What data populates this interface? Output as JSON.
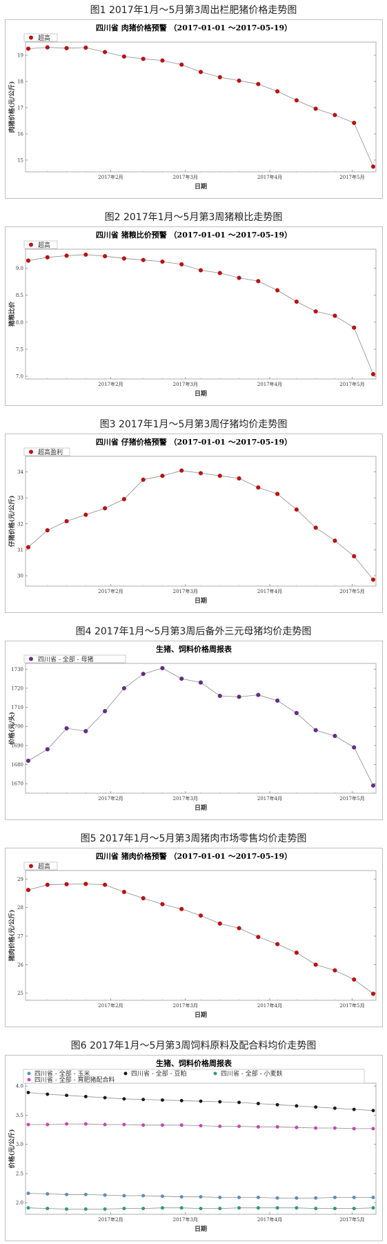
{
  "charts": [
    {
      "caption": "图1 2017年1月～5月第3周出栏肥猪价格走势图",
      "chart_data": {
        "type": "line",
        "title": "四川省 肉猪价格预警 （2017-01-01 ～2017-05-19）",
        "xlabel": "日期",
        "ylabel": "肉猪价格(元/公斤)",
        "x_ticks": [
          "2017年2月",
          "2017年3月",
          "2017年4月",
          "2017年5月"
        ],
        "y_ticks": [
          "15",
          "16",
          "17",
          "18",
          "19"
        ],
        "ylim": [
          14.55,
          19.5
        ],
        "series": [
          {
            "name": "超高",
            "color": "#c01010",
            "values": [
              19.25,
              19.3,
              19.27,
              19.29,
              19.12,
              18.95,
              18.86,
              18.8,
              18.64,
              18.36,
              18.16,
              18.03,
              17.9,
              17.62,
              17.28,
              16.96,
              16.72,
              16.42,
              14.75
            ]
          }
        ]
      }
    },
    {
      "caption": "图2 2017年1月～5月第3周猪粮比走势图",
      "chart_data": {
        "type": "line",
        "title": "四川省 猪粮比价预警 （2017-01-01 ～2017-05-19）",
        "xlabel": "日期",
        "ylabel": "猪粮比价",
        "x_ticks": [
          "2017年2月",
          "2017年3月",
          "2017年4月",
          "2017年5月"
        ],
        "y_ticks": [
          "7.0",
          "7.5",
          "8.0",
          "8.5",
          "9.0"
        ],
        "ylim": [
          6.95,
          9.35
        ],
        "series": [
          {
            "name": "超高",
            "color": "#c01010",
            "values": [
              9.14,
              9.2,
              9.23,
              9.25,
              9.22,
              9.18,
              9.15,
              9.12,
              9.07,
              8.96,
              8.91,
              8.82,
              8.76,
              8.59,
              8.38,
              8.2,
              8.12,
              7.9,
              7.04
            ]
          }
        ]
      }
    },
    {
      "caption": "图3 2017年1月～5月第3周仔猪均价走势图",
      "chart_data": {
        "type": "line",
        "title": "四川省 仔猪价格预警 （2017-01-01 ～2017-05-19）",
        "xlabel": "日期",
        "ylabel": "仔猪价格(元/公斤)",
        "x_ticks": [
          "2017年2月",
          "2017年3月",
          "2017年4月",
          "2017年5月"
        ],
        "y_ticks": [
          "30",
          "31",
          "32",
          "33",
          "34"
        ],
        "ylim": [
          29.6,
          34.6
        ],
        "series": [
          {
            "name": "超高盈利",
            "color": "#c01010",
            "values": [
              31.1,
              31.75,
              32.1,
              32.35,
              32.6,
              32.95,
              33.7,
              33.85,
              34.05,
              33.95,
              33.85,
              33.75,
              33.4,
              33.15,
              32.55,
              31.85,
              31.35,
              30.75,
              29.85
            ]
          }
        ]
      }
    },
    {
      "caption": "图4 2017年1月～5月第3周后备外三元母猪均价走势图",
      "chart_data": {
        "type": "line",
        "title": "生猪、饲料价格周报表",
        "xlabel": "日期",
        "ylabel": "价格(元/头)",
        "x_ticks": [
          "2017年2月",
          "2017年3月",
          "2017年4月",
          "2017年5月"
        ],
        "y_ticks": [
          "1670",
          "1680",
          "1690",
          "1700",
          "1710",
          "1720",
          "1730"
        ],
        "ylim": [
          1665,
          1733
        ],
        "series": [
          {
            "name": "四川省 - 全部 - 母猪",
            "color": "#6a2a8a",
            "values": [
              1682,
              1688,
              1699,
              1697.5,
              1708,
              1720,
              1727.5,
              1730.5,
              1725,
              1723,
              1716,
              1715.5,
              1716.5,
              1713.5,
              1707,
              1698,
              1695,
              1689,
              1669
            ]
          }
        ]
      }
    },
    {
      "caption": "图5 2017年1月～5月第3周猪肉市场零售均价走势图",
      "chart_data": {
        "type": "line",
        "title": "四川省 猪肉价格预警 （2017-01-01 ～2017-05-19）",
        "xlabel": "日期",
        "ylabel": "猪肉价格(元/公斤)",
        "x_ticks": [
          "2017年2月",
          "2017年3月",
          "2017年4月",
          "2017年5月"
        ],
        "y_ticks": [
          "25",
          "26",
          "27",
          "28",
          "29"
        ],
        "ylim": [
          24.75,
          29.3
        ],
        "series": [
          {
            "name": "超高",
            "color": "#c01010",
            "values": [
              28.62,
              28.8,
              28.82,
              28.83,
              28.8,
              28.55,
              28.33,
              28.12,
              27.95,
              27.72,
              27.44,
              27.28,
              26.97,
              26.72,
              26.42,
              26.0,
              25.8,
              25.48,
              24.98
            ]
          }
        ]
      }
    },
    {
      "caption": "图6 2017年1月～5月第3周饲料原料及配合料均价走势图",
      "chart_data": {
        "type": "line",
        "title": "生猪、饲料价格周报表",
        "xlabel": "日期",
        "ylabel": "价格(元/公斤)",
        "x_ticks": [
          "2017年2月",
          "2017年3月",
          "2017年4月",
          "2017年5月"
        ],
        "y_ticks": [
          "2.0",
          "2.5",
          "3.0",
          "3.5",
          "4.0"
        ],
        "ylim": [
          1.8,
          4.05
        ],
        "series": [
          {
            "name": "四川省 - 全部 - 玉米",
            "color": "#5a8fc0",
            "values": [
              2.16,
              2.15,
              2.14,
              2.14,
              2.13,
              2.12,
              2.12,
              2.11,
              2.1,
              2.1,
              2.09,
              2.09,
              2.09,
              2.08,
              2.08,
              2.08,
              2.09,
              2.09,
              2.09
            ]
          },
          {
            "name": "四川省 - 全部 - 豆粕",
            "color": "#1a1a1a",
            "values": [
              3.89,
              3.86,
              3.84,
              3.82,
              3.8,
              3.78,
              3.77,
              3.76,
              3.75,
              3.74,
              3.73,
              3.72,
              3.7,
              3.68,
              3.66,
              3.64,
              3.62,
              3.6,
              3.58
            ]
          },
          {
            "name": "四川省 - 全部 - 小麦麸",
            "color": "#2aa070",
            "values": [
              1.91,
              1.9,
              1.89,
              1.89,
              1.89,
              1.9,
              1.9,
              1.91,
              1.91,
              1.9,
              1.9,
              1.91,
              1.91,
              1.91,
              1.91,
              1.9,
              1.9,
              1.9,
              1.91
            ]
          },
          {
            "name": "四川省 - 全部 - 育肥猪配合料",
            "color": "#d040c0",
            "values": [
              3.34,
              3.34,
              3.35,
              3.35,
              3.34,
              3.34,
              3.33,
              3.33,
              3.33,
              3.32,
              3.31,
              3.31,
              3.3,
              3.3,
              3.29,
              3.28,
              3.28,
              3.27,
              3.27
            ]
          }
        ]
      }
    }
  ]
}
